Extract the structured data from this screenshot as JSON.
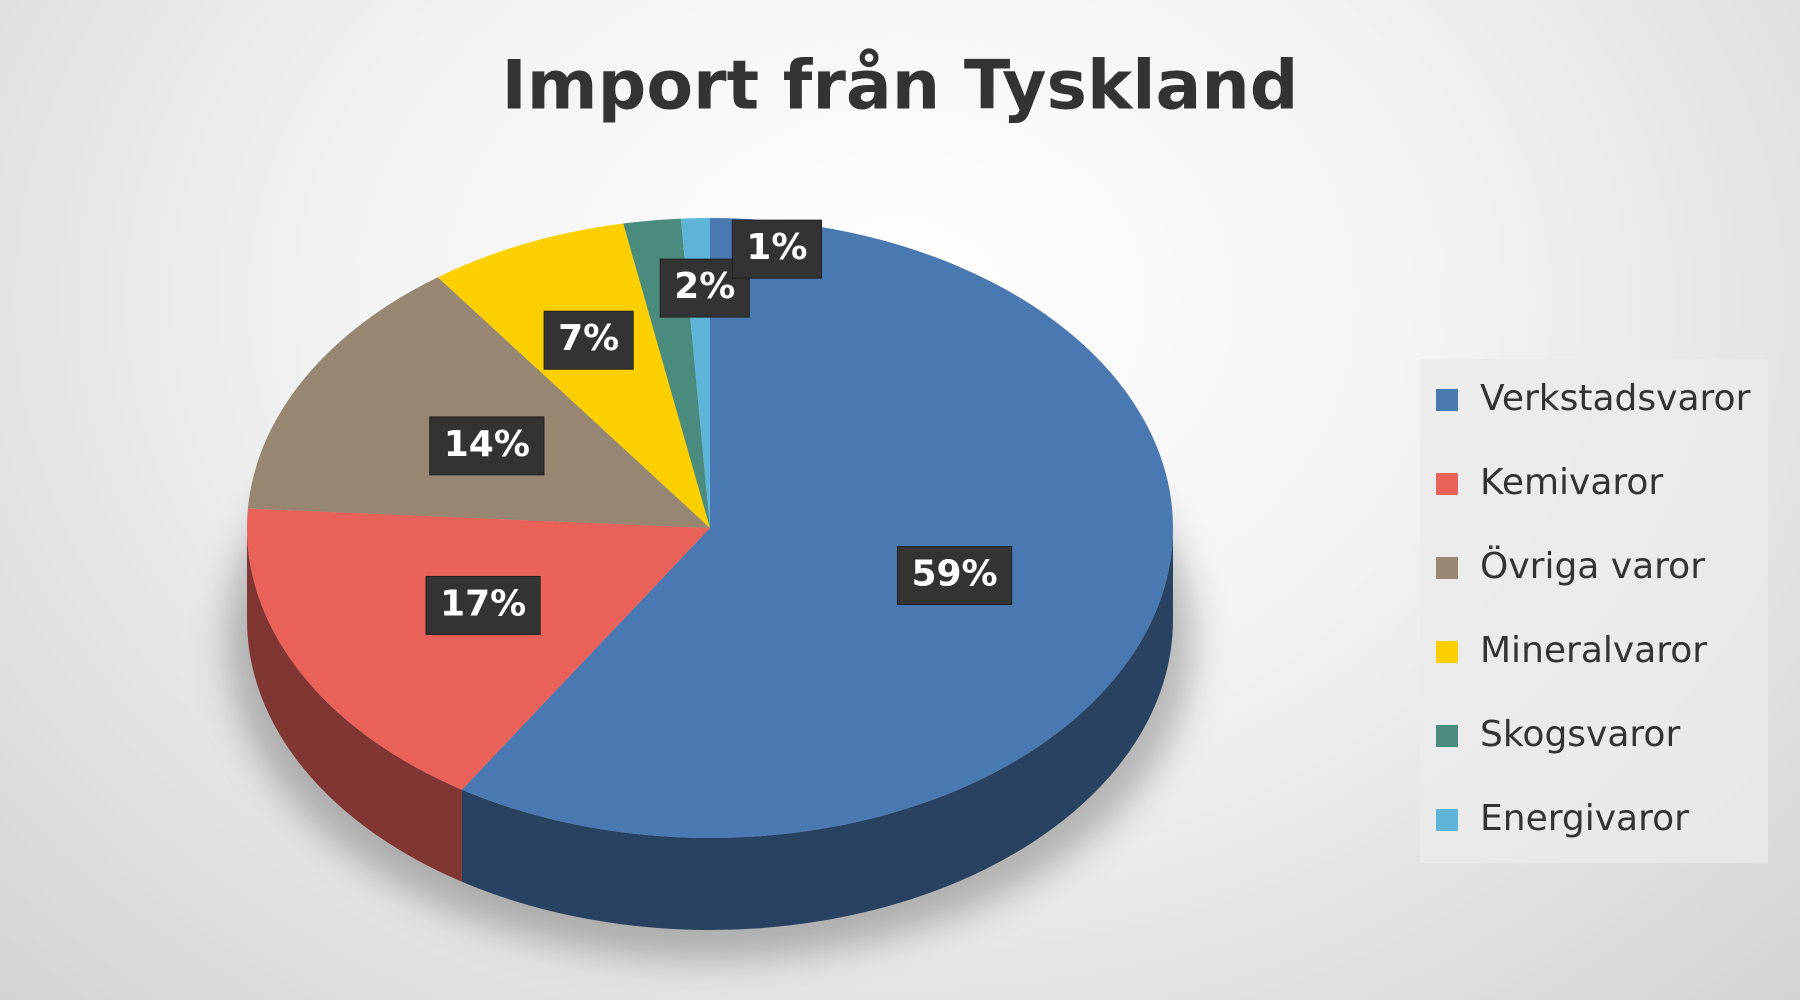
{
  "chart_data": {
    "type": "pie",
    "title": "Import från Tyskland",
    "categories": [
      "Verkstadsvaror",
      "Kemivaror",
      "Övriga varor",
      "Mineralvaror",
      "Skogsvaror",
      "Energivaror"
    ],
    "values": [
      59,
      17,
      14,
      7,
      2,
      1
    ],
    "value_labels": [
      "59%",
      "17%",
      "14%",
      "7%",
      "2%",
      "1%"
    ],
    "colors": [
      "#4a78b0",
      "#e9625a",
      "#978672",
      "#fccf00",
      "#4b8b7e",
      "#5eb5d8"
    ],
    "legend": "right"
  }
}
